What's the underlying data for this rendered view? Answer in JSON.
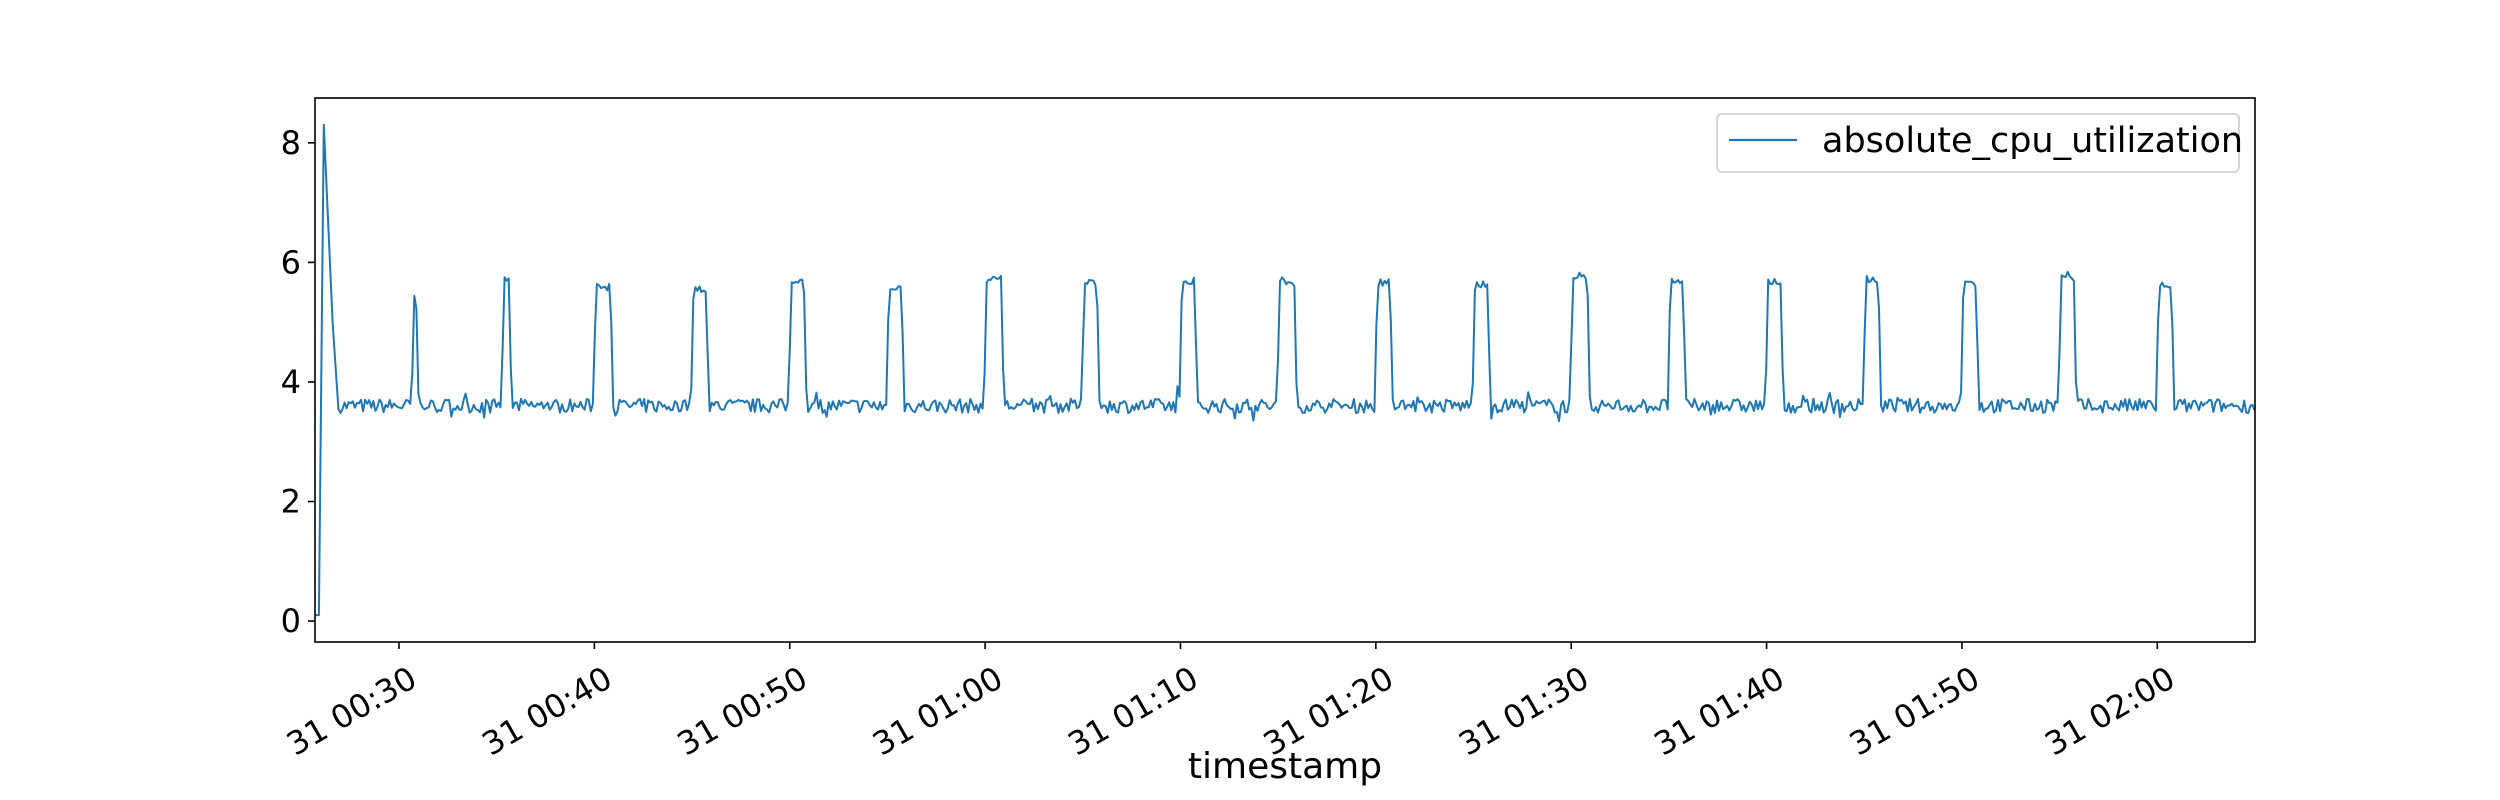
{
  "chart_data": {
    "type": "line",
    "title": "",
    "xlabel": "timestamp",
    "ylabel": "",
    "x_start": "31 00:26",
    "x_end": "31 02:05",
    "x_ticks": [
      "31 00:30",
      "31 00:40",
      "31 00:50",
      "31 01:00",
      "31 01:10",
      "31 01:20",
      "31 01:30",
      "31 01:40",
      "31 01:50",
      "31 02:00"
    ],
    "y_ticks": [
      0,
      2,
      4,
      6,
      8
    ],
    "ylim": [
      -0.35,
      8.75
    ],
    "grid": false,
    "legend_position": "top-right",
    "series": [
      {
        "name": "absolute_cpu_utilization",
        "color": "#1f77b4",
        "baseline": 3.6,
        "startup": [
          [
            0.0,
            0.1
          ],
          [
            0.2,
            0.1
          ],
          [
            0.45,
            8.3
          ],
          [
            0.9,
            5.0
          ],
          [
            1.2,
            3.55
          ]
        ],
        "spikes": [
          {
            "start": 5.0,
            "end": 5.25,
            "peak": 5.5
          },
          {
            "start": 9.6,
            "end": 10.0,
            "peak": 5.8
          },
          {
            "start": 14.3,
            "end": 15.2,
            "peak": 5.65
          },
          {
            "start": 19.3,
            "end": 20.1,
            "peak": 5.6
          },
          {
            "start": 24.3,
            "end": 25.1,
            "peak": 5.72
          },
          {
            "start": 29.3,
            "end": 30.1,
            "peak": 5.62
          },
          {
            "start": 34.3,
            "end": 35.2,
            "peak": 5.78
          },
          {
            "start": 39.3,
            "end": 40.1,
            "peak": 5.72
          },
          {
            "start": 44.3,
            "end": 45.1,
            "peak": 5.75
          },
          {
            "start": 49.3,
            "end": 50.2,
            "peak": 5.75
          },
          {
            "start": 54.3,
            "end": 55.1,
            "peak": 5.72
          },
          {
            "start": 59.3,
            "end": 60.1,
            "peak": 5.68
          },
          {
            "start": 64.3,
            "end": 65.2,
            "peak": 5.85
          },
          {
            "start": 69.3,
            "end": 70.1,
            "peak": 5.75
          },
          {
            "start": 74.3,
            "end": 75.1,
            "peak": 5.75
          },
          {
            "start": 79.3,
            "end": 80.1,
            "peak": 5.78
          },
          {
            "start": 84.3,
            "end": 85.1,
            "peak": 5.7
          },
          {
            "start": 89.3,
            "end": 90.1,
            "peak": 5.85
          },
          {
            "start": 94.3,
            "end": 95.1,
            "peak": 5.68
          }
        ]
      }
    ]
  }
}
